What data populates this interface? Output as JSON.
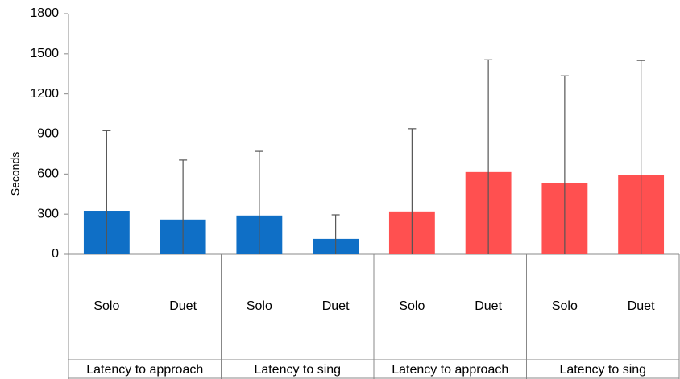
{
  "chart_data": {
    "type": "bar",
    "y_label": "Seconds",
    "categories": [
      "Solo",
      "Duet",
      "Solo",
      "Duet",
      "Solo",
      "Duet",
      "Solo",
      "Duet"
    ],
    "groups": [
      "Latency to approach",
      "Latency to sing",
      "Latency to approach",
      "Latency to sing"
    ],
    "values": [
      325,
      260,
      290,
      115,
      320,
      615,
      535,
      595
    ],
    "errors": [
      600,
      445,
      480,
      180,
      620,
      840,
      800,
      855
    ],
    "colors": [
      "#0f6fc6",
      "#0f6fc6",
      "#0f6fc6",
      "#0f6fc6",
      "#ff5050",
      "#ff5050",
      "#ff5050",
      "#ff5050"
    ],
    "ylim": [
      0,
      1800
    ],
    "yticks": [
      0,
      300,
      600,
      900,
      1200,
      1500,
      1800
    ],
    "grid": false
  }
}
